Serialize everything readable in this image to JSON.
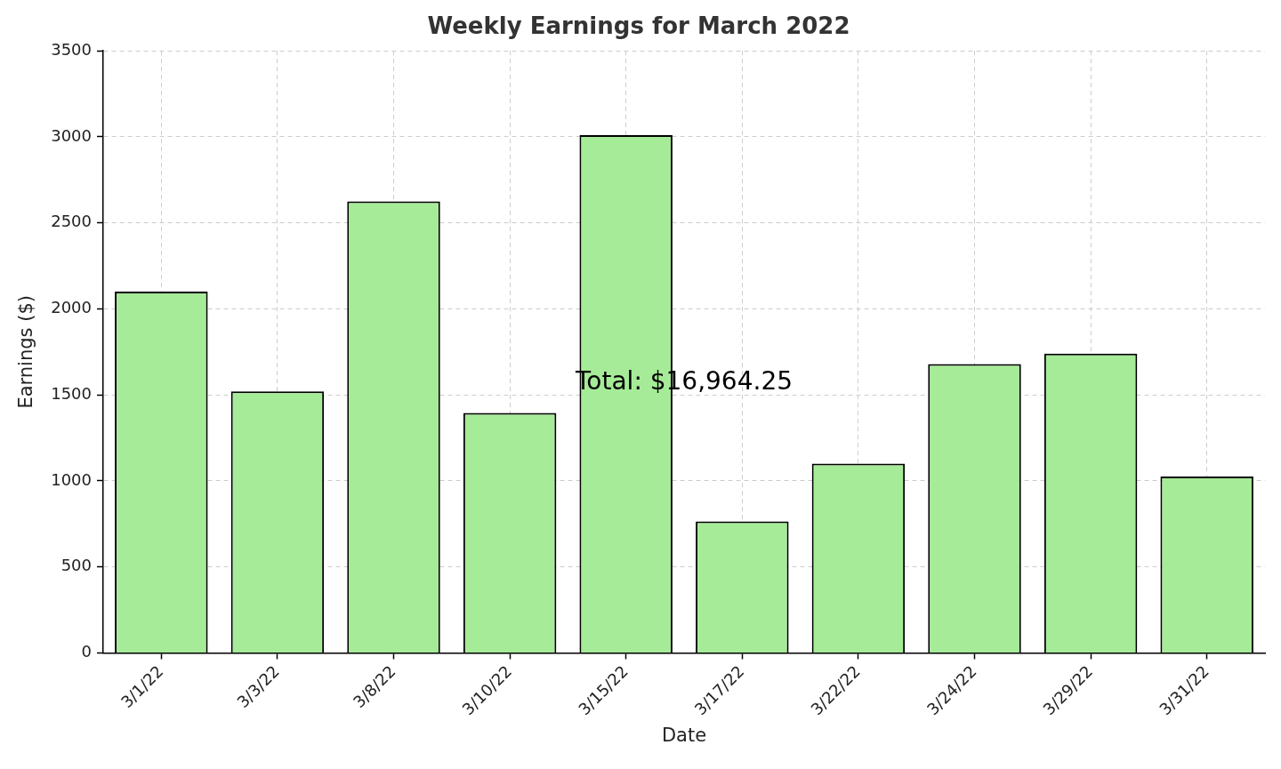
{
  "chart_data": {
    "type": "bar",
    "title": "Weekly Earnings for March 2022",
    "xlabel": "Date",
    "ylabel": "Earnings ($)",
    "categories": [
      "3/1/22",
      "3/3/22",
      "3/8/22",
      "3/10/22",
      "3/15/22",
      "3/17/22",
      "3/22/22",
      "3/24/22",
      "3/29/22",
      "3/31/22"
    ],
    "values": [
      2100,
      1520,
      2625,
      1395,
      3010,
      765,
      1100,
      1680,
      1740,
      1025
    ],
    "color": "#a6eb98",
    "ylim": [
      0,
      3500
    ],
    "yticks": [
      0,
      500,
      1000,
      1500,
      2000,
      2500,
      3000,
      3500
    ],
    "grid": true,
    "annotations": [
      "Total: $16,964.25"
    ]
  }
}
